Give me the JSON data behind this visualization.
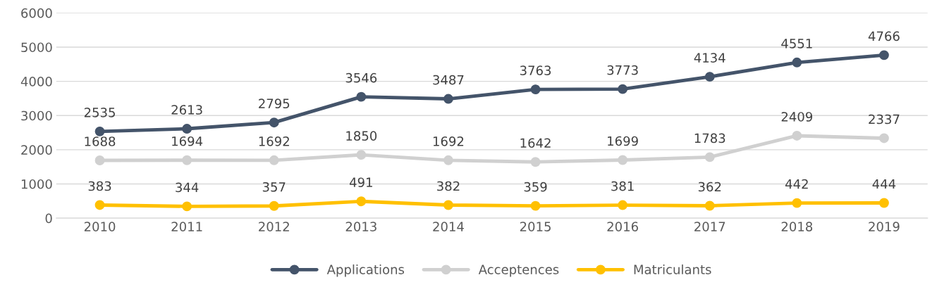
{
  "chart_data": {
    "type": "line",
    "categories": [
      "2010",
      "2011",
      "2012",
      "2013",
      "2014",
      "2015",
      "2016",
      "2017",
      "2018",
      "2019"
    ],
    "series": [
      {
        "name": "Applications",
        "color": "#44546a",
        "values": [
          2535,
          2613,
          2795,
          3546,
          3487,
          3763,
          3773,
          4134,
          4551,
          4766
        ]
      },
      {
        "name": "Acceptences",
        "color": "#d0d0d0",
        "values": [
          1688,
          1694,
          1692,
          1850,
          1692,
          1642,
          1699,
          1783,
          2409,
          2337
        ]
      },
      {
        "name": "Matriculants",
        "color": "#ffc000",
        "values": [
          383,
          344,
          357,
          491,
          382,
          359,
          381,
          362,
          442,
          444
        ]
      }
    ],
    "ylim": [
      0,
      6000
    ],
    "yticks": [
      0,
      1000,
      2000,
      3000,
      4000,
      5000,
      6000
    ],
    "grid": "y",
    "legend": "bottom",
    "marker": "circle",
    "line_style": "solid",
    "data_labels": true
  }
}
